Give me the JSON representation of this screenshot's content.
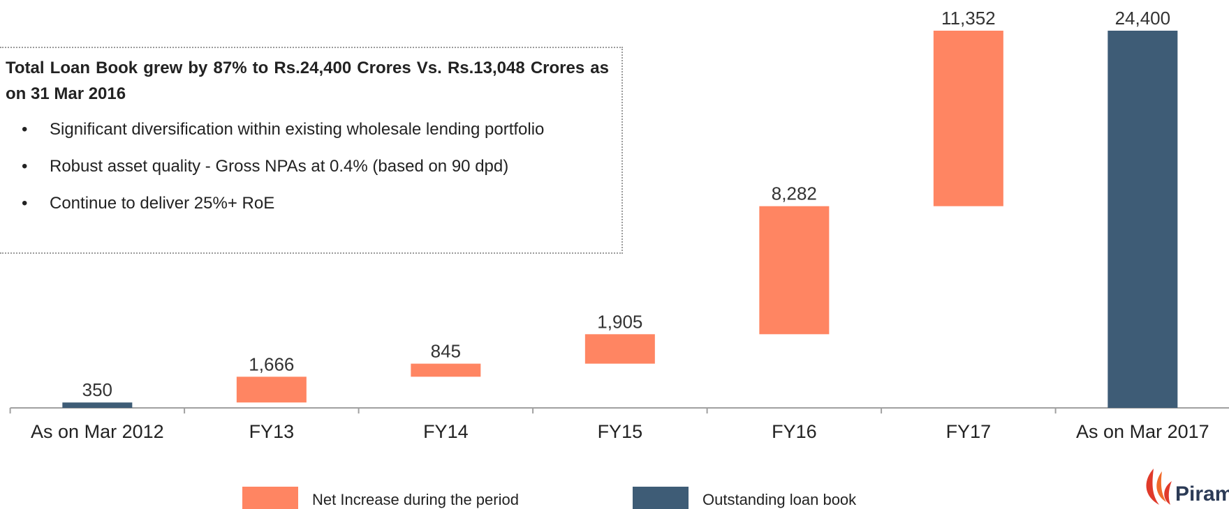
{
  "chart_data": {
    "type": "waterfall",
    "categories": [
      "As on Mar 2012",
      "FY13",
      "FY14",
      "FY15",
      "FY16",
      "FY17",
      "As on Mar 2017"
    ],
    "series": [
      {
        "name": "Net Increase during the period",
        "color": "#ff8562",
        "values": [
          null,
          1666,
          845,
          1905,
          8282,
          11352,
          null
        ],
        "value_labels": [
          null,
          "1,666",
          "845",
          "1,905",
          "8,282",
          "11,352",
          null
        ]
      },
      {
        "name": "Outstanding loan book",
        "color": "#3e5c76",
        "values": [
          350,
          null,
          null,
          null,
          null,
          null,
          24400
        ],
        "value_labels": [
          "350",
          null,
          null,
          null,
          null,
          null,
          "24,400"
        ]
      }
    ]
  },
  "note": {
    "heading": "Total Loan Book grew by 87% to Rs.24,400 Crores Vs. Rs.13,048 Crores as on 31 Mar 2016",
    "bullets": [
      "Significant diversification within existing wholesale lending portfolio",
      "Robust asset quality - Gross NPAs at 0.4% (based on 90 dpd)",
      "Continue to deliver 25%+ RoE"
    ]
  },
  "logo": {
    "text": "Piram"
  }
}
